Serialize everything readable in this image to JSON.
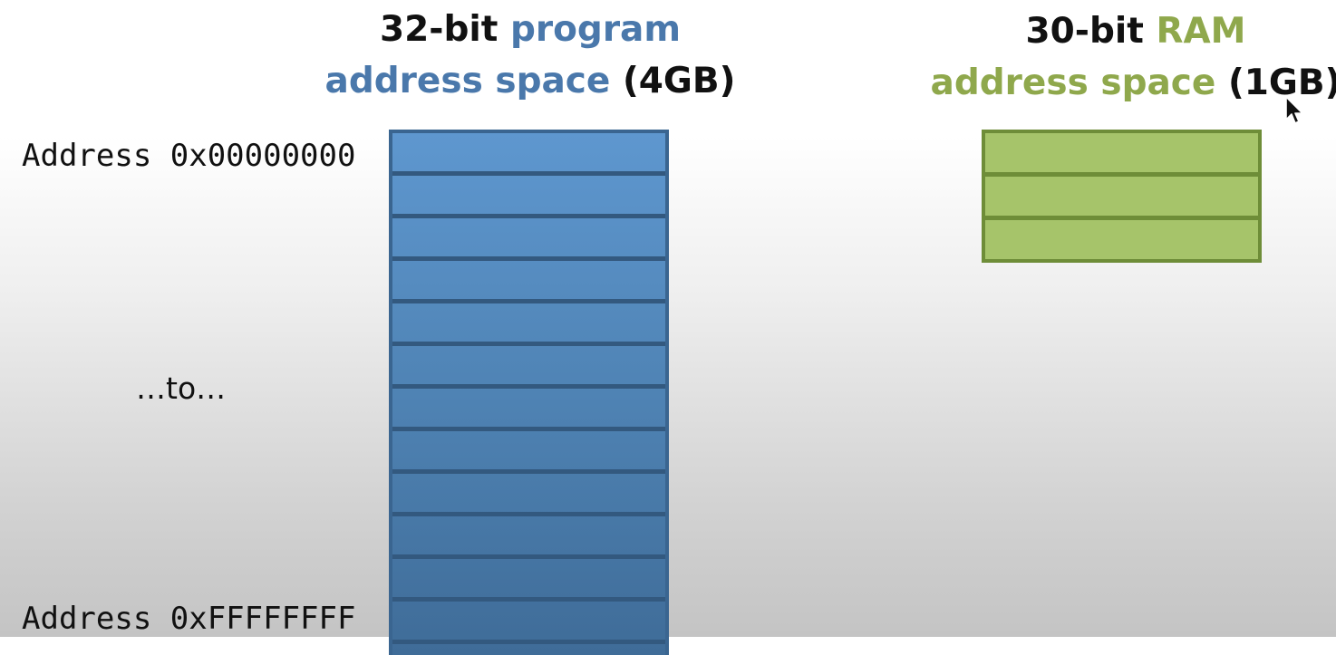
{
  "program_space": {
    "title_prefix": "32-bit ",
    "title_accent": "program",
    "title_line2_accent": "address space",
    "title_suffix": " (4GB)",
    "accent_color": "#4a78ab",
    "row_count": 12
  },
  "ram_space": {
    "title_prefix": "30-bit ",
    "title_accent": "RAM",
    "title_line2_accent": "address space",
    "title_suffix": " (1GB)",
    "accent_color": "#8fa84c",
    "row_count": 3
  },
  "labels": {
    "address_start": "Address 0x00000000",
    "range_text": "…to…",
    "address_end": "Address 0xFFFFFFFF"
  }
}
